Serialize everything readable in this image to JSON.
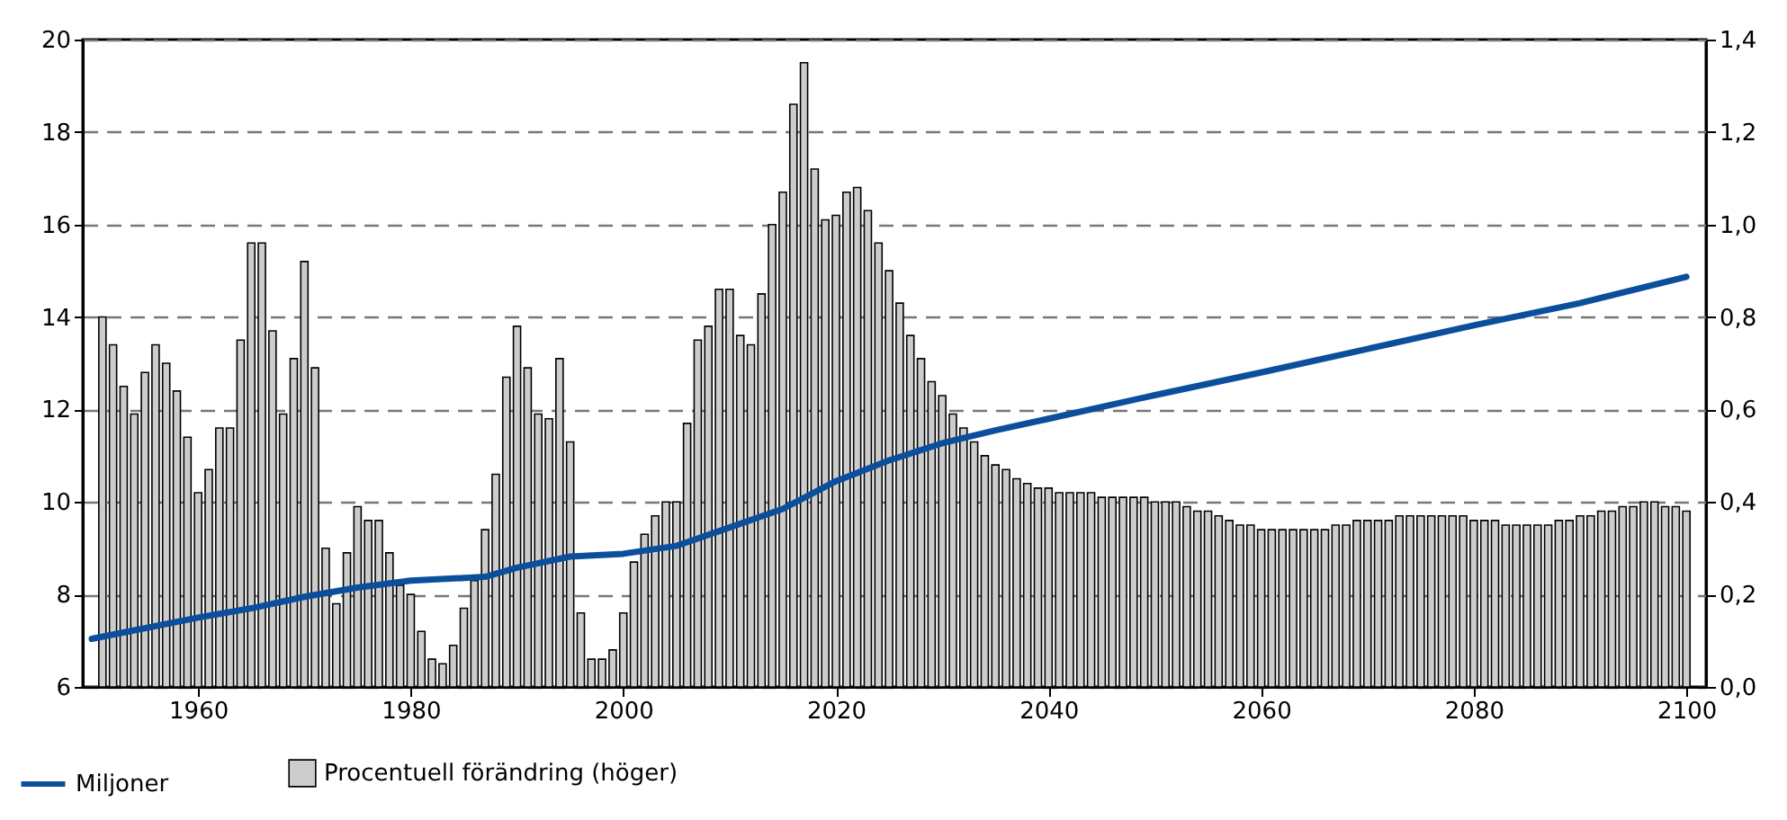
{
  "chart_data": {
    "type": "bar",
    "xlim": [
      1950,
      2101
    ],
    "xticks": [
      1960,
      1980,
      2000,
      2020,
      2040,
      2060,
      2080,
      2100
    ],
    "ylim": [
      6,
      20
    ],
    "yticks": [
      6,
      8,
      10,
      12,
      14,
      16,
      18,
      20
    ],
    "y2lim": [
      0,
      1.4
    ],
    "y2ticks": [
      {
        "value": 0,
        "label": "0,0"
      },
      {
        "value": 0.2,
        "label": "0,2"
      },
      {
        "value": 0.4,
        "label": "0,4"
      },
      {
        "value": 0.6,
        "label": "0,6"
      },
      {
        "value": 0.8,
        "label": "0,8"
      },
      {
        "value": 1.0,
        "label": "1,0"
      },
      {
        "value": 1.2,
        "label": "1,2"
      },
      {
        "value": 1.4,
        "label": "1,4"
      }
    ],
    "grid": "y",
    "legend": "bottom left",
    "x": [
      1951,
      1952,
      1953,
      1954,
      1955,
      1956,
      1957,
      1958,
      1959,
      1960,
      1961,
      1962,
      1963,
      1964,
      1965,
      1966,
      1967,
      1968,
      1969,
      1970,
      1971,
      1972,
      1973,
      1974,
      1975,
      1976,
      1977,
      1978,
      1979,
      1980,
      1981,
      1982,
      1983,
      1984,
      1985,
      1986,
      1987,
      1988,
      1989,
      1990,
      1991,
      1992,
      1993,
      1994,
      1995,
      1996,
      1997,
      1998,
      1999,
      2000,
      2001,
      2002,
      2003,
      2004,
      2005,
      2006,
      2007,
      2008,
      2009,
      2010,
      2011,
      2012,
      2013,
      2014,
      2015,
      2016,
      2017,
      2018,
      2019,
      2020,
      2021,
      2022,
      2023,
      2024,
      2025,
      2026,
      2027,
      2028,
      2029,
      2030,
      2031,
      2032,
      2033,
      2034,
      2035,
      2036,
      2037,
      2038,
      2039,
      2040,
      2041,
      2042,
      2043,
      2044,
      2045,
      2046,
      2047,
      2048,
      2049,
      2050,
      2051,
      2052,
      2053,
      2054,
      2055,
      2056,
      2057,
      2058,
      2059,
      2060,
      2061,
      2062,
      2063,
      2064,
      2065,
      2066,
      2067,
      2068,
      2069,
      2070,
      2071,
      2072,
      2073,
      2074,
      2075,
      2076,
      2077,
      2078,
      2079,
      2080,
      2081,
      2082,
      2083,
      2084,
      2085,
      2086,
      2087,
      2088,
      2089,
      2090,
      2091,
      2092,
      2093,
      2094,
      2095,
      2096,
      2097,
      2098,
      2099,
      2100
    ],
    "series": [
      {
        "name": "Procentuell förändring (höger)",
        "axis": "y2",
        "color": "#cccccc",
        "values": [
          0.8,
          0.74,
          0.65,
          0.59,
          0.68,
          0.74,
          0.7,
          0.64,
          0.54,
          0.42,
          0.47,
          0.56,
          0.56,
          0.75,
          0.96,
          0.96,
          0.77,
          0.59,
          0.71,
          0.92,
          0.69,
          0.3,
          0.18,
          0.29,
          0.39,
          0.36,
          0.36,
          0.29,
          0.22,
          0.2,
          0.12,
          0.06,
          0.05,
          0.09,
          0.17,
          0.23,
          0.34,
          0.46,
          0.67,
          0.78,
          0.69,
          0.59,
          0.58,
          0.71,
          0.53,
          0.16,
          0.06,
          0.06,
          0.08,
          0.16,
          0.27,
          0.33,
          0.37,
          0.4,
          0.4,
          0.57,
          0.75,
          0.78,
          0.86,
          0.86,
          0.76,
          0.74,
          0.85,
          1.0,
          1.07,
          1.26,
          1.35,
          1.12,
          1.01,
          1.02,
          1.07,
          1.08,
          1.03,
          0.96,
          0.9,
          0.83,
          0.76,
          0.71,
          0.66,
          0.63,
          0.59,
          0.56,
          0.53,
          0.5,
          0.48,
          0.47,
          0.45,
          0.44,
          0.43,
          0.43,
          0.42,
          0.42,
          0.42,
          0.42,
          0.41,
          0.41,
          0.41,
          0.41,
          0.41,
          0.4,
          0.4,
          0.4,
          0.39,
          0.38,
          0.38,
          0.37,
          0.36,
          0.35,
          0.35,
          0.34,
          0.34,
          0.34,
          0.34,
          0.34,
          0.34,
          0.34,
          0.35,
          0.35,
          0.36,
          0.36,
          0.36,
          0.36,
          0.37,
          0.37,
          0.37,
          0.37,
          0.37,
          0.37,
          0.37,
          0.36,
          0.36,
          0.36,
          0.35,
          0.35,
          0.35,
          0.35,
          0.35,
          0.36,
          0.36,
          0.37,
          0.37,
          0.38,
          0.38,
          0.39,
          0.39,
          0.4,
          0.4,
          0.39,
          0.39,
          0.38
        ]
      },
      {
        "name": "Miljoner",
        "type": "line",
        "color": "#0b4f9c",
        "x": [
          1950,
          1960,
          1965,
          1970,
          1975,
          1980,
          1987,
          1990,
          1995,
          2000,
          2005,
          2010,
          2015,
          2020,
          2025,
          2030,
          2035,
          2040,
          2050,
          2060,
          2070,
          2080,
          2090,
          2100
        ],
        "values": [
          7.04,
          7.5,
          7.7,
          7.95,
          8.15,
          8.3,
          8.38,
          8.58,
          8.82,
          8.88,
          9.05,
          9.45,
          9.85,
          10.45,
          10.9,
          11.27,
          11.55,
          11.8,
          12.31,
          12.8,
          13.31,
          13.82,
          14.3,
          14.87
        ]
      }
    ]
  }
}
